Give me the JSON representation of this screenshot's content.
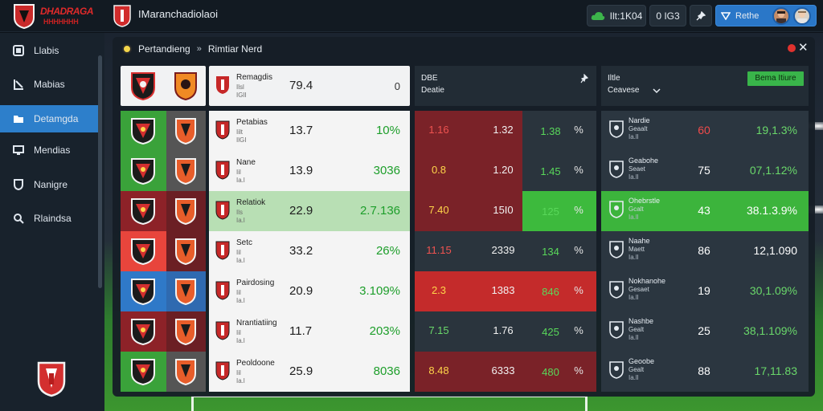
{
  "brand": {
    "title": "DHADRAGA",
    "subtitle": "HHHHHHH"
  },
  "app_title": "IMaranchadiolaoi",
  "top_pills": {
    "a": "Ilt:1K04",
    "b": "0 IG3",
    "user": "Rethe"
  },
  "nav": [
    {
      "label": "Llabis",
      "icon": "square-icon"
    },
    {
      "label": "Mabias",
      "icon": "chart-icon"
    },
    {
      "label": "Detamgda",
      "icon": "folder-icon",
      "active": true
    },
    {
      "label": "Mendias",
      "icon": "monitor-icon"
    },
    {
      "label": "Nanigre",
      "icon": "shield-icon"
    },
    {
      "label": "Rlaindsa",
      "icon": "search-icon"
    }
  ],
  "breadcrumb": {
    "first": "Pertandieng",
    "separator": "»",
    "second": "Rimtiar Nerd"
  },
  "header": {
    "main_name": "Remagdis",
    "main_sub": "Ilsl",
    "main_sub2": "IGlI",
    "main_val": "79.4",
    "main_right": "0",
    "mid_line1": "DBE",
    "mid_line2": "Deatie",
    "right_line1": "Iltle",
    "right_line2": "Ceavese",
    "filter_label": "Bema Itiure"
  },
  "rows": [
    {
      "main_name": "Petabias",
      "main_sub": "Iilt",
      "main_sub2": "IlGI",
      "main_val": "13.7",
      "main_pct": "10%",
      "m1": "1.16",
      "m2": "1.32",
      "m3": "1.38",
      "m4": "%",
      "r_name": "Nardie",
      "r_sub": "Geaalt",
      "r_sub2": "Ia.ll",
      "r_val": "60",
      "r_pct": "19,1.3%",
      "colors": {
        "logo_l": "#3aa23a",
        "logo_r": "#555555",
        "main": "#f4f4f4",
        "mid_l": "#7a2228",
        "mid_r": "#2a343d",
        "right": "#2b3640",
        "m1": "#ef5350",
        "r_val": "#ef4b4b",
        "r_pct": "#6ad86a"
      }
    },
    {
      "main_name": "Nane",
      "main_sub": "Iil",
      "main_sub2": "Ia.l",
      "main_val": "13.9",
      "main_pct": "3036",
      "m1": "0.8",
      "m2": "1.20",
      "m3": "1.45",
      "m4": "%",
      "r_name": "Geabohe",
      "r_sub": "Seaet",
      "r_sub2": "Ia.ll",
      "r_val": "75",
      "r_pct": "07,1.12%",
      "colors": {
        "logo_l": "#3aa23a",
        "logo_r": "#555555",
        "main": "#f4f4f4",
        "mid_l": "#7a2228",
        "mid_r": "#2a343d",
        "right": "#2b3640",
        "m1": "#ffd54a",
        "r_val": "#ffffff",
        "r_pct": "#6ad86a"
      }
    },
    {
      "main_name": "Relatiok",
      "main_sub": "Ils",
      "main_sub2": "Ia.l",
      "main_val": "22.9",
      "main_pct": "2.7.136",
      "m1": "7.40",
      "m2": "15I0",
      "m3": "125",
      "m4": "%",
      "r_name": "Ohebrstle",
      "r_sub": "Gcalt",
      "r_sub2": "Ia.ll",
      "r_val": "43",
      "r_pct": "38.1.3.9%",
      "colors": {
        "logo_l": "#8d2228",
        "logo_r": "#6b1f24",
        "main": "#b8dfb4",
        "mid_l": "#7a2228",
        "mid_r": "#3dba3d",
        "right": "#3cb43c",
        "m1": "#ffd54a",
        "r_val": "#ffffff",
        "r_pct": "#ffffff"
      }
    },
    {
      "main_name": "Setc",
      "main_sub": "Iil",
      "main_sub2": "Ia.l",
      "main_val": "33.2",
      "main_pct": "26%",
      "m1": "11.15",
      "m2": "2339",
      "m3": "134",
      "m4": "%",
      "r_name": "Naahe",
      "r_sub": "Maett",
      "r_sub2": "Ia.ll",
      "r_val": "86",
      "r_pct": "12,1.090",
      "colors": {
        "logo_l": "#e8453c",
        "logo_r": "#6b1f24",
        "main": "#f4f4f4",
        "mid_l": "#2a343d",
        "mid_r": "#2a343d",
        "right": "#2b3640",
        "m1": "#ef5350",
        "r_val": "#ffffff",
        "r_pct": "#ffffff"
      }
    },
    {
      "main_name": "Pairdosing",
      "main_sub": "Iil",
      "main_sub2": "Ia.l",
      "main_val": "20.9",
      "main_pct": "3.109%",
      "m1": "2.3",
      "m2": "1383",
      "m3": "846",
      "m4": "%",
      "r_name": "Nokhanohe",
      "r_sub": "Gesaet",
      "r_sub2": "Ia.ll",
      "r_val": "19",
      "r_pct": "30,1.09%",
      "colors": {
        "logo_l": "#2f79c8",
        "logo_r": "#2f6ab0",
        "main": "#f4f4f4",
        "mid_l": "#c42b2b",
        "mid_r": "#c42b2b",
        "right": "#2b3640",
        "m1": "#ffd54a",
        "r_val": "#ffffff",
        "r_pct": "#6ad86a"
      }
    },
    {
      "main_name": "Nrantiatiing",
      "main_sub": "Iil",
      "main_sub2": "Ia.l",
      "main_val": "11.7",
      "main_pct": "203%",
      "m1": "7.15",
      "m2": "1.76",
      "m3": "425",
      "m4": "%",
      "r_name": "Nashbe",
      "r_sub": "Gealt",
      "r_sub2": "Ia.ll",
      "r_val": "25",
      "r_pct": "38,1.109%",
      "colors": {
        "logo_l": "#8d2228",
        "logo_r": "#6b1f24",
        "main": "#f4f4f4",
        "mid_l": "#2a343d",
        "mid_r": "#2a343d",
        "right": "#2b3640",
        "m1": "#6ad86a",
        "r_val": "#ffffff",
        "r_pct": "#6ad86a"
      }
    },
    {
      "main_name": "Peoldoone",
      "main_sub": "Iil",
      "main_sub2": "Ia.l",
      "main_val": "25.9",
      "main_pct": "8036",
      "m1": "8.48",
      "m2": "6333",
      "m3": "480",
      "m4": "%",
      "r_name": "Geoobe",
      "r_sub": "Gealt",
      "r_sub2": "Ia.ll",
      "r_val": "88",
      "r_pct": "17,11.83",
      "colors": {
        "logo_l": "#3aa23a",
        "logo_r": "#555555",
        "main": "#f4f4f4",
        "mid_l": "#7a2228",
        "mid_r": "#7a2228",
        "right": "#2b3640",
        "m1": "#ffd54a",
        "r_val": "#ffffff",
        "r_pct": "#6ad86a"
      }
    }
  ]
}
